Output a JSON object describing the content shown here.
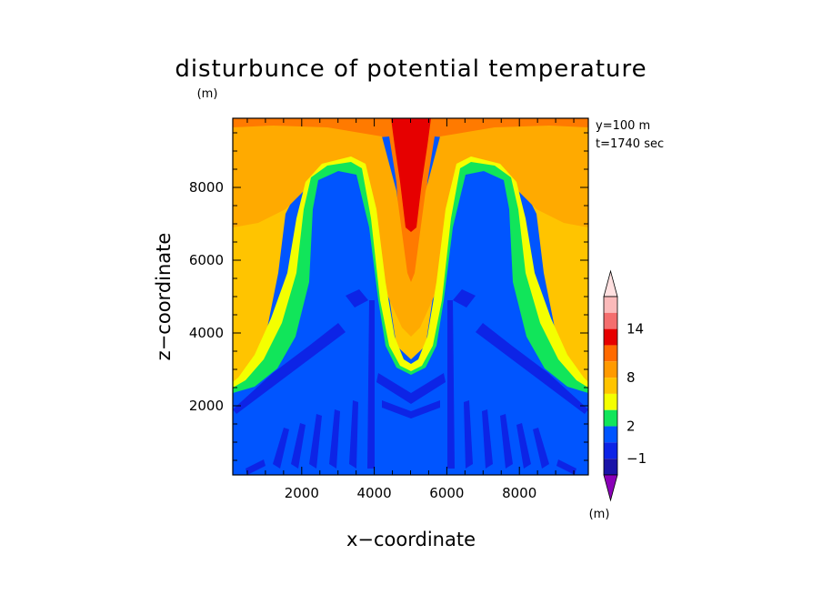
{
  "chart_data": {
    "type": "heatmap",
    "title": "disturbunce of potential temperature",
    "subtitle": "(m)",
    "xlabel": "x−coordinate",
    "ylabel": "z−coordinate",
    "xlim": [
      100,
      9900
    ],
    "ylim": [
      100,
      9900
    ],
    "x_ticks": [
      2000,
      4000,
      6000,
      8000
    ],
    "y_ticks": [
      2000,
      4000,
      6000,
      8000
    ],
    "annotations": [
      "y=100 m",
      "t=1740 sec"
    ],
    "colorbar": {
      "unit_label": "(m)",
      "tick_labels": [
        "−1",
        "2",
        "8",
        "14"
      ],
      "levels": [
        -2,
        -1,
        0,
        2,
        4,
        6,
        8,
        10,
        12,
        14,
        16
      ],
      "colors": [
        "#8a00b8",
        "#1a14a8",
        "#0d24e6",
        "#0055ff",
        "#11e55a",
        "#f4ff00",
        "#ffc400",
        "#ff9a00",
        "#ff6a00",
        "#e60000",
        "#f46e6e",
        "#fbbaba",
        "#ffe0e0"
      ],
      "extend": "both"
    },
    "field_summary": "Cool plume (about -1) occupies the lower and central columns; warm anomaly (2 to 14) forms a U-shaped band descending along x=5000 with maxima near the top boundary."
  }
}
